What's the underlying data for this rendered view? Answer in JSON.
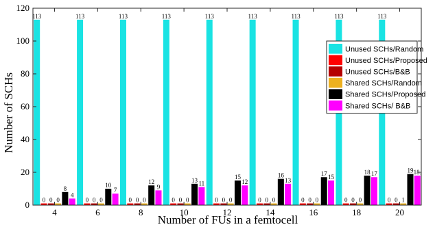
{
  "chart_data": {
    "type": "bar",
    "title": "",
    "xlabel": "Number of FUs in a femtocell",
    "ylabel": "Number of SCHs",
    "categories": [
      "4",
      "6",
      "8",
      "10",
      "12",
      "14",
      "16",
      "18",
      "20"
    ],
    "ylim": [
      0,
      120
    ],
    "yticks": [
      0,
      20,
      40,
      60,
      80,
      100,
      120
    ],
    "grid": false,
    "legend_position": "right",
    "series": [
      {
        "name": "Unused SCHs/Random",
        "color": "#19E3E3",
        "values": [
          113,
          113,
          113,
          113,
          113,
          113,
          113,
          113,
          113
        ],
        "labels": [
          "113",
          "113",
          "113",
          "113",
          "113",
          "113",
          "113",
          "113",
          "113"
        ]
      },
      {
        "name": "Unused SCHs/Proposed",
        "color": "#FF0000",
        "values": [
          0,
          0,
          0,
          0,
          0,
          0,
          0,
          0,
          0
        ],
        "labels": [
          "0",
          "0",
          "0",
          "0",
          "0",
          "0",
          "0",
          "0",
          "0"
        ]
      },
      {
        "name": "Unused SCHs/B&B",
        "color": "#B50000",
        "values": [
          0,
          0,
          0,
          0,
          0,
          0,
          0,
          0,
          0
        ],
        "labels": [
          "0",
          "0",
          "0",
          "0",
          "0",
          "0",
          "0",
          "0",
          "0"
        ]
      },
      {
        "name": "Shared SCHs/Random",
        "color": "#EDB120",
        "values": [
          0,
          0,
          0,
          0,
          0,
          0,
          0,
          0,
          1
        ],
        "labels": [
          "0",
          "0",
          "0",
          "0",
          "0",
          "0",
          "0",
          "0",
          "1"
        ]
      },
      {
        "name": "Shared SCHs/Proposed",
        "color": "#000000",
        "values": [
          8,
          10,
          12,
          13,
          15,
          16,
          17,
          18,
          19
        ],
        "labels": [
          "8",
          "10",
          "12",
          "13",
          "15",
          "16",
          "17",
          "18",
          "19"
        ]
      },
      {
        "name": "Shared SCHs/ B&B",
        "color": "#FF00FF",
        "values": [
          4,
          7,
          9,
          11,
          12,
          13,
          15,
          17,
          18
        ],
        "labels": [
          "4",
          "7",
          "9",
          "11",
          "12",
          "13",
          "15",
          "17",
          "18."
        ]
      }
    ]
  }
}
